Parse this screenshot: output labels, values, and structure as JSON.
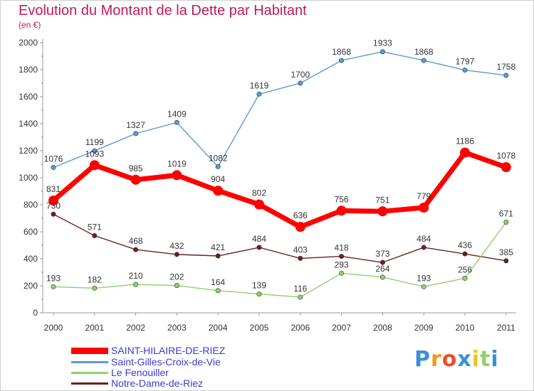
{
  "header": {
    "title": "Evolution du Montant de la Dette par Habitant",
    "subtitle": "(en €)"
  },
  "chart_data": {
    "type": "line",
    "x": [
      "2000",
      "2001",
      "2002",
      "2003",
      "2004",
      "2005",
      "2006",
      "2007",
      "2008",
      "2009",
      "2010",
      "2011"
    ],
    "ylim": [
      0,
      2000
    ],
    "yticks": [
      0,
      200,
      400,
      600,
      800,
      1000,
      1200,
      1400,
      1600,
      1800,
      2000
    ],
    "grid": false,
    "legend_position": "bottom-left",
    "series": [
      {
        "name": "Saint-Gilles-Croix-de-Vie",
        "color": "#5b9bd5",
        "values": [
          1076,
          1199,
          1327,
          1409,
          1082,
          1619,
          1700,
          1868,
          1933,
          1868,
          1797,
          1758
        ]
      },
      {
        "name": "Notre-Dame-de-Riez",
        "color": "#6b1f1f",
        "values": [
          730,
          571,
          468,
          432,
          421,
          484,
          403,
          418,
          373,
          484,
          436,
          385
        ]
      },
      {
        "name": "Le Fenouiller",
        "color": "#8ed16b",
        "values": [
          193,
          182,
          210,
          202,
          164,
          139,
          116,
          293,
          264,
          193,
          256,
          671
        ]
      },
      {
        "name": "SAINT-HILAIRE-DE-RIEZ",
        "color": "#ff0000",
        "values": [
          831,
          1093,
          985,
          1019,
          904,
          802,
          636,
          756,
          751,
          779,
          1186,
          1078
        ]
      }
    ]
  },
  "legend": {
    "items": [
      {
        "label": "SAINT-HILAIRE-DE-RIEZ",
        "color": "#ff0000"
      },
      {
        "label": "Saint-Gilles-Croix-de-Vie",
        "color": "#5b9bd5"
      },
      {
        "label": "Le Fenouiller",
        "color": "#8ed16b"
      },
      {
        "label": "Notre-Dame-de-Riez",
        "color": "#6b1f1f"
      }
    ]
  },
  "logo": {
    "text": "Proxiti",
    "letters": [
      "P",
      "r",
      "o",
      "x",
      "i",
      "t",
      "i"
    ],
    "colors": [
      "#3a8fd8",
      "#f29a1f",
      "#e94f2b",
      "#3a8fd8",
      "#f2c21f",
      "#8ed16b",
      "#3a8fd8"
    ]
  }
}
